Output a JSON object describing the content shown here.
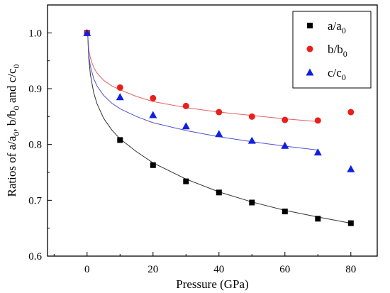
{
  "chart_data": {
    "type": "scatter",
    "xlabel": "Pressure (GPa)",
    "ylabel": {
      "parts": [
        "Ratios of a/a",
        "0",
        ", b/b",
        "0",
        " and c/c",
        "0"
      ]
    },
    "xlim": [
      -12,
      88
    ],
    "ylim": [
      0.6,
      1.05
    ],
    "xticks": [
      0,
      20,
      40,
      60,
      80
    ],
    "xtick_labels": [
      "0",
      "20",
      "40",
      "60",
      "80"
    ],
    "yticks": [
      0.6,
      0.7,
      0.8,
      0.9,
      1.0
    ],
    "ytick_labels": [
      "0.6",
      "0.7",
      "0.8",
      "0.9",
      "1.0"
    ],
    "grid": false,
    "legend_position": "top-right",
    "series": [
      {
        "name": "a/a0",
        "legend_main": "a/a",
        "legend_sub": "0",
        "marker": "square",
        "color": "#000000",
        "fit_color": "#333333",
        "x": [
          0,
          10,
          20,
          30,
          40,
          50,
          60,
          70,
          80
        ],
        "y": [
          1.0,
          0.808,
          0.763,
          0.734,
          0.714,
          0.696,
          0.68,
          0.667,
          0.659
        ],
        "fit": [
          [
            0.2,
            0.998
          ],
          [
            0.5,
            0.955
          ],
          [
            1,
            0.925
          ],
          [
            2,
            0.893
          ],
          [
            3,
            0.873
          ],
          [
            5,
            0.847
          ],
          [
            7.5,
            0.826
          ],
          [
            10,
            0.81
          ],
          [
            15,
            0.787
          ],
          [
            20,
            0.767
          ],
          [
            30,
            0.738
          ],
          [
            40,
            0.715
          ],
          [
            50,
            0.697
          ],
          [
            60,
            0.682
          ],
          [
            70,
            0.67
          ],
          [
            80,
            0.659
          ]
        ]
      },
      {
        "name": "b/b0",
        "legend_main": "b/b",
        "legend_sub": "0",
        "marker": "circle",
        "color": "#e8201c",
        "fit_color": "#e06060",
        "x": [
          0,
          10,
          20,
          30,
          40,
          50,
          60,
          70,
          80
        ],
        "y": [
          1.0,
          0.902,
          0.883,
          0.869,
          0.858,
          0.85,
          0.844,
          0.843,
          0.858
        ],
        "fit": [
          [
            0.2,
            0.998
          ],
          [
            0.5,
            0.97
          ],
          [
            1,
            0.955
          ],
          [
            2,
            0.938
          ],
          [
            3,
            0.928
          ],
          [
            5,
            0.915
          ],
          [
            7.5,
            0.905
          ],
          [
            10,
            0.898
          ],
          [
            15,
            0.886
          ],
          [
            20,
            0.877
          ],
          [
            30,
            0.866
          ],
          [
            40,
            0.858
          ],
          [
            50,
            0.852
          ],
          [
            60,
            0.846
          ],
          [
            70,
            0.841
          ]
        ]
      },
      {
        "name": "c/c0",
        "legend_main": "c/c",
        "legend_sub": "0",
        "marker": "triangle",
        "color": "#1020e0",
        "fit_color": "#5050d0",
        "x": [
          0,
          10,
          20,
          30,
          40,
          50,
          60,
          70,
          80
        ],
        "y": [
          1.0,
          0.885,
          0.853,
          0.833,
          0.819,
          0.807,
          0.798,
          0.786,
          0.756
        ],
        "fit": [
          [
            0.2,
            0.998
          ],
          [
            0.5,
            0.96
          ],
          [
            1,
            0.94
          ],
          [
            2,
            0.918
          ],
          [
            3,
            0.905
          ],
          [
            5,
            0.888
          ],
          [
            7.5,
            0.874
          ],
          [
            10,
            0.864
          ],
          [
            15,
            0.85
          ],
          [
            20,
            0.839
          ],
          [
            30,
            0.825
          ],
          [
            40,
            0.814
          ],
          [
            50,
            0.805
          ],
          [
            60,
            0.797
          ],
          [
            70,
            0.79
          ]
        ]
      }
    ]
  }
}
